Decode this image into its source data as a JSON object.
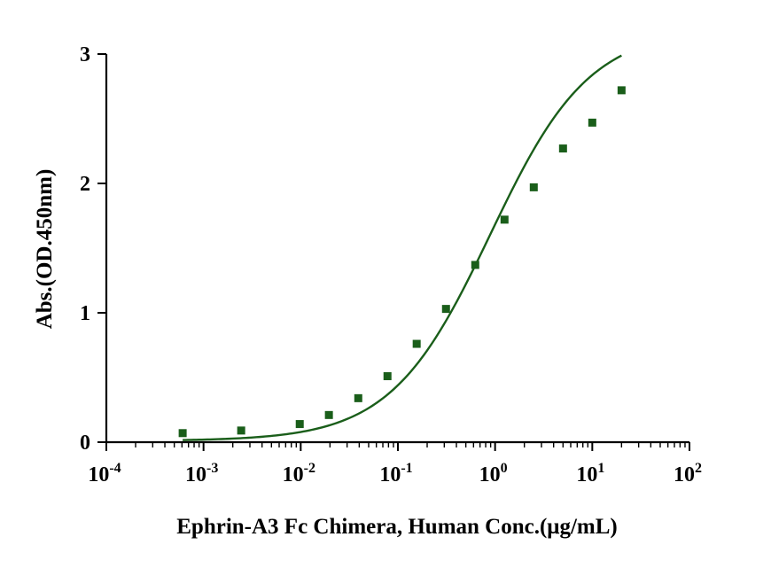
{
  "chart_data": {
    "type": "scatter",
    "title": "",
    "xlabel": "Ephrin-A3 Fc Chimera, Human Conc.(μg/mL)",
    "ylabel": "Abs.(OD.450nm)",
    "xscale": "log",
    "xlim": [
      0.0001,
      100
    ],
    "ylim": [
      0,
      3
    ],
    "x_ticks": [
      {
        "value": 0.0001,
        "base": "10",
        "exp": "-4"
      },
      {
        "value": 0.001,
        "base": "10",
        "exp": "-3"
      },
      {
        "value": 0.01,
        "base": "10",
        "exp": "-2"
      },
      {
        "value": 0.1,
        "base": "10",
        "exp": "-1"
      },
      {
        "value": 1,
        "base": "10",
        "exp": "0"
      },
      {
        "value": 10,
        "base": "10",
        "exp": "1"
      },
      {
        "value": 100,
        "base": "10",
        "exp": "2"
      }
    ],
    "y_ticks": [
      {
        "value": 0,
        "label": "0"
      },
      {
        "value": 1,
        "label": "1"
      },
      {
        "value": 2,
        "label": "2"
      },
      {
        "value": 3,
        "label": "3"
      }
    ],
    "grid": false,
    "legend": "none",
    "series": [
      {
        "color": "#1a5e1a",
        "marker": "square",
        "fit_curve": true,
        "points": [
          {
            "x": 0.00061,
            "y": 0.07
          },
          {
            "x": 0.00244,
            "y": 0.09
          },
          {
            "x": 0.00977,
            "y": 0.14
          },
          {
            "x": 0.0195,
            "y": 0.21
          },
          {
            "x": 0.0391,
            "y": 0.34
          },
          {
            "x": 0.0781,
            "y": 0.51
          },
          {
            "x": 0.156,
            "y": 0.76
          },
          {
            "x": 0.3125,
            "y": 1.03
          },
          {
            "x": 0.625,
            "y": 1.37
          },
          {
            "x": 1.25,
            "y": 1.72
          },
          {
            "x": 2.5,
            "y": 1.97
          },
          {
            "x": 5,
            "y": 2.27
          },
          {
            "x": 10,
            "y": 2.47
          },
          {
            "x": 20,
            "y": 2.72
          }
        ]
      }
    ]
  }
}
